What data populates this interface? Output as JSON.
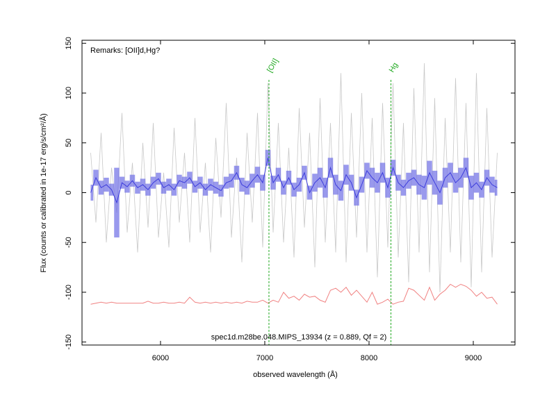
{
  "chart_data": {
    "type": "line",
    "title": "spec1d.m28be.048.MIPS_13934 (z = 0.889, Qf = 2)",
    "remarks": "Remarks: [OII]d,Hg?",
    "xlabel": "observed wavelength (Å)",
    "ylabel": "Flux (counts or calibrated in 1e-17 erg/s/cm²/Å)",
    "xlim": [
      5247,
      9400
    ],
    "ylim": [
      -153,
      153
    ],
    "xticks": [
      6000,
      7000,
      8000,
      9000
    ],
    "yticks": [
      -150,
      -100,
      -50,
      0,
      50,
      100,
      150
    ],
    "x": [
      5330,
      5380,
      5430,
      5480,
      5530,
      5580,
      5630,
      5680,
      5730,
      5780,
      5830,
      5880,
      5930,
      5980,
      6030,
      6080,
      6130,
      6180,
      6230,
      6280,
      6330,
      6380,
      6430,
      6480,
      6530,
      6580,
      6630,
      6680,
      6730,
      6780,
      6830,
      6880,
      6930,
      6980,
      7030,
      7080,
      7130,
      7180,
      7230,
      7280,
      7330,
      7380,
      7430,
      7480,
      7530,
      7580,
      7630,
      7680,
      7730,
      7780,
      7830,
      7880,
      7930,
      7980,
      8030,
      8080,
      8130,
      8180,
      8230,
      8280,
      8330,
      8380,
      8430,
      8480,
      8530,
      8580,
      8630,
      8680,
      8730,
      8780,
      8830,
      8880,
      8930,
      8980,
      9030,
      9080,
      9130,
      9180,
      9230
    ],
    "series": [
      {
        "color": "#c8c8c8",
        "values": [
          40,
          -30,
          60,
          -50,
          25,
          -20,
          80,
          -40,
          30,
          -60,
          50,
          -35,
          70,
          -45,
          20,
          -55,
          65,
          -30,
          40,
          -50,
          75,
          -40,
          30,
          -60,
          55,
          -25,
          90,
          -45,
          35,
          -70,
          60,
          -30,
          80,
          -55,
          110,
          -40,
          70,
          -50,
          45,
          -65,
          85,
          -35,
          60,
          -75,
          95,
          -50,
          70,
          -60,
          120,
          -70,
          80,
          -45,
          100,
          -60,
          75,
          -85,
          90,
          -55,
          110,
          -65,
          70,
          -90,
          105,
          -60,
          130,
          -80,
          95,
          -100,
          75,
          -60,
          115,
          -70,
          90,
          -95,
          120,
          -80,
          85,
          -65,
          40
        ]
      },
      {
        "color": "#3c3cdc",
        "band_color": "#6e6ee6",
        "values": [
          0,
          15,
          5,
          8,
          3,
          -10,
          10,
          6,
          12,
          5,
          8,
          3,
          10,
          14,
          5,
          8,
          3,
          12,
          10,
          15,
          6,
          10,
          3,
          8,
          5,
          2,
          10,
          12,
          20,
          8,
          5,
          12,
          18,
          10,
          35,
          10,
          18,
          5,
          15,
          3,
          8,
          20,
          0,
          10,
          15,
          5,
          25,
          8,
          2,
          18,
          10,
          -5,
          8,
          22,
          15,
          10,
          20,
          5,
          25,
          10,
          5,
          12,
          15,
          8,
          5,
          20,
          10,
          0,
          15,
          20,
          10,
          15,
          25,
          5,
          10,
          3,
          15,
          8,
          5
        ],
        "errors": [
          8,
          8,
          7,
          7,
          6,
          35,
          6,
          6,
          6,
          6,
          6,
          6,
          6,
          6,
          6,
          6,
          6,
          6,
          6,
          6,
          6,
          6,
          6,
          6,
          6,
          6,
          6,
          7,
          7,
          7,
          7,
          7,
          8,
          8,
          8,
          7,
          7,
          7,
          7,
          7,
          7,
          7,
          7,
          9,
          10,
          10,
          10,
          10,
          10,
          10,
          8,
          8,
          8,
          8,
          10,
          10,
          10,
          10,
          8,
          8,
          8,
          8,
          8,
          10,
          12,
          12,
          12,
          12,
          10,
          10,
          10,
          10,
          10,
          12,
          10,
          8,
          8,
          8,
          8
        ]
      },
      {
        "color": "#f08080",
        "values": [
          -112,
          -111,
          -110,
          -111,
          -110,
          -111,
          -111,
          -111,
          -111,
          -111,
          -111,
          -109,
          -111,
          -111,
          -110,
          -111,
          -111,
          -110,
          -111,
          -105,
          -110,
          -111,
          -110,
          -111,
          -110,
          -111,
          -110,
          -111,
          -110,
          -111,
          -109,
          -110,
          -110,
          -108,
          -111,
          -108,
          -110,
          -100,
          -106,
          -104,
          -108,
          -102,
          -105,
          -104,
          -108,
          -110,
          -98,
          -96,
          -100,
          -95,
          -103,
          -98,
          -104,
          -110,
          -100,
          -112,
          -110,
          -107,
          -112,
          -110,
          -109,
          -96,
          -98,
          -103,
          -108,
          -95,
          -108,
          -102,
          -98,
          -92,
          -95,
          -92,
          -94,
          -98,
          -104,
          -100,
          -106,
          -105,
          -112
        ]
      }
    ],
    "lines": [
      {
        "label": "[OII]",
        "x": 7040
      },
      {
        "label": "Hg",
        "x": 8210
      }
    ],
    "line_color": "#22aa22"
  }
}
